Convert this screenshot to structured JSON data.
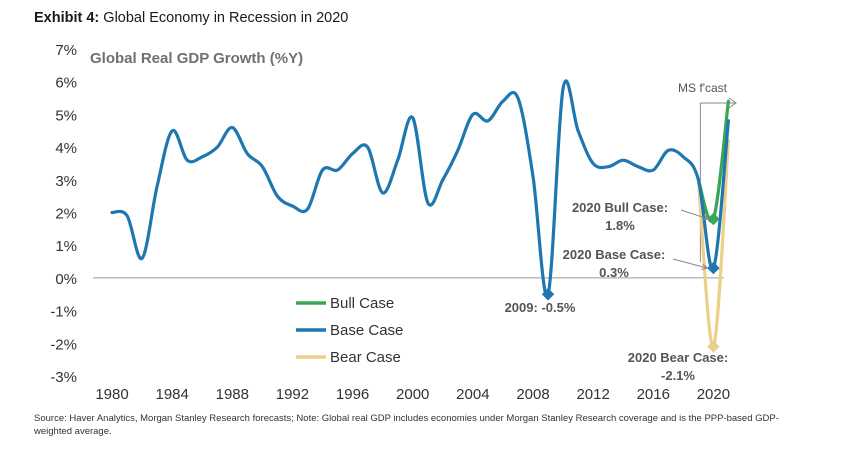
{
  "header": {
    "exhibit_label": "Exhibit 4:",
    "exhibit_title": "Global Economy in Recession in 2020"
  },
  "footer": {
    "source": "Source: Haver Analytics, Morgan Stanley Research forecasts; Note: Global real GDP includes economies under Morgan Stanley Research coverage and is the PPP-based GDP-weighted average."
  },
  "colors": {
    "base": "#1f77b0",
    "bull": "#3aa655",
    "bear": "#ecd08a",
    "text": "#222222",
    "title_gray": "#707070",
    "annot": "#555555"
  },
  "chart_data": {
    "type": "line",
    "title": "Global Real GDP Growth (%Y)",
    "xlabel": "",
    "ylabel": "",
    "xlim": [
      1979,
      2022.5
    ],
    "ylim": [
      -3,
      7
    ],
    "xticks": [
      1980,
      1984,
      1988,
      1992,
      1996,
      2000,
      2004,
      2008,
      2012,
      2016,
      2020
    ],
    "yticks": [
      -3,
      -2,
      -1,
      0,
      1,
      2,
      3,
      4,
      5,
      6,
      7
    ],
    "ytick_labels": [
      "-3%",
      "-2%",
      "-1%",
      "0%",
      "1%",
      "2%",
      "3%",
      "4%",
      "5%",
      "6%",
      "7%"
    ],
    "grid": false,
    "legend_position": "bottom-left-center",
    "series": [
      {
        "name": "Base Case",
        "key": "base",
        "x": [
          1980,
          1981,
          1982,
          1983,
          1984,
          1985,
          1986,
          1987,
          1988,
          1989,
          1990,
          1991,
          1992,
          1993,
          1994,
          1995,
          1996,
          1997,
          1998,
          1999,
          2000,
          2001,
          2002,
          2003,
          2004,
          2005,
          2006,
          2007,
          2008,
          2009,
          2010,
          2011,
          2012,
          2013,
          2014,
          2015,
          2016,
          2017,
          2018,
          2019,
          2020,
          2021
        ],
        "values": [
          2.0,
          1.9,
          0.6,
          2.8,
          4.5,
          3.6,
          3.7,
          4.0,
          4.6,
          3.8,
          3.4,
          2.5,
          2.2,
          2.1,
          3.3,
          3.3,
          3.8,
          4.0,
          2.6,
          3.6,
          4.9,
          2.3,
          3.0,
          3.9,
          5.0,
          4.8,
          5.4,
          5.5,
          3.1,
          -0.5,
          5.8,
          4.5,
          3.5,
          3.4,
          3.6,
          3.4,
          3.3,
          3.9,
          3.7,
          3.0,
          0.3,
          4.8
        ]
      },
      {
        "name": "Bull Case",
        "key": "bull",
        "x": [
          2019,
          2020,
          2021
        ],
        "values": [
          3.0,
          1.8,
          5.4
        ]
      },
      {
        "name": "Bear Case",
        "key": "bear",
        "x": [
          2019,
          2020,
          2021
        ],
        "values": [
          3.0,
          -2.1,
          4.2
        ]
      }
    ],
    "legend": [
      "Bull Case",
      "Base Case",
      "Bear Case"
    ],
    "annotations": [
      {
        "key": "ann_2009",
        "text": "2009: -0.5%",
        "x": 2009,
        "y": -0.5
      },
      {
        "key": "ann_bull",
        "line1": "2020 Bull Case:",
        "line2": "1.8%",
        "x": 2020,
        "y": 1.8
      },
      {
        "key": "ann_base",
        "line1": "2020 Base Case:",
        "line2": "0.3%",
        "x": 2020,
        "y": 0.3
      },
      {
        "key": "ann_bear",
        "line1": "2020 Bear Case:",
        "line2": "-2.1%",
        "x": 2020,
        "y": -2.1
      }
    ],
    "forecast_label": "MS f'cast",
    "forecast_start_x": 2019
  }
}
